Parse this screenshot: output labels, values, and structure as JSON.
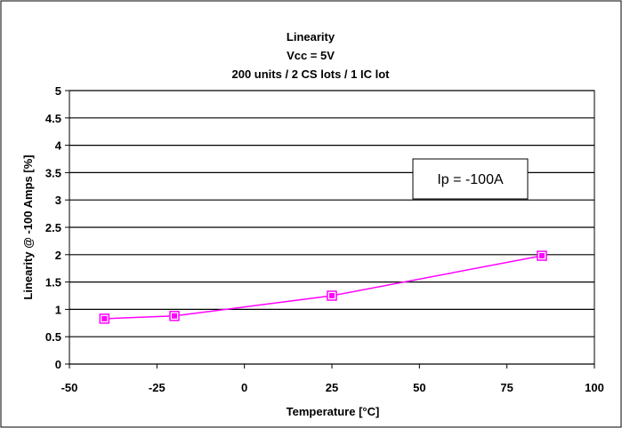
{
  "chart_data": {
    "type": "line",
    "title": [
      "Linearity",
      "Vcc = 5V",
      "200 units / 2 CS lots / 1 IC lot"
    ],
    "xlabel": "Temperature [°C]",
    "ylabel": "Linearity @ -100 Amps [%]",
    "xlim": [
      -50,
      100
    ],
    "ylim": [
      0,
      5
    ],
    "xticks": [
      -50,
      -25,
      0,
      25,
      50,
      75,
      100
    ],
    "xtick_labels": [
      "-50",
      "-25",
      "0",
      "25",
      "50",
      "75",
      "100"
    ],
    "yticks": [
      0,
      0.5,
      1,
      1.5,
      2,
      2.5,
      3,
      3.5,
      4,
      4.5,
      5
    ],
    "ytick_labels": [
      "0",
      "0.5",
      "1",
      "1.5",
      "2",
      "2.5",
      "3",
      "3.5",
      "4",
      "4.5",
      "5"
    ],
    "grid": "horizontal",
    "series": [
      {
        "x": [
          -40,
          -20,
          25,
          85
        ],
        "y": [
          0.83,
          0.88,
          1.25,
          1.98
        ],
        "color": "#ff00ff",
        "marker": "square"
      }
    ],
    "annotations": [
      {
        "text": "Ip = -100A",
        "boxed": true
      }
    ]
  }
}
